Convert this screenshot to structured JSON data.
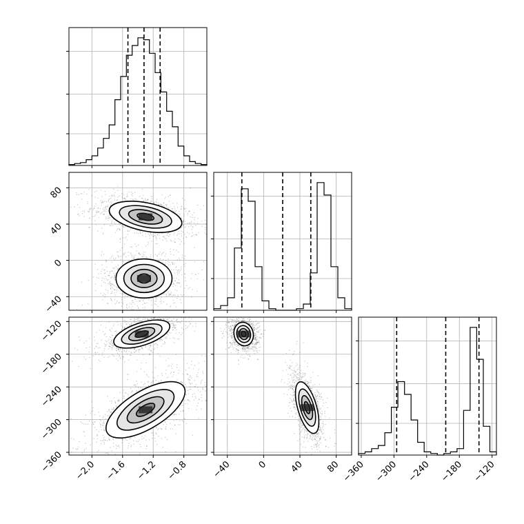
{
  "chart_data": {
    "type": "corner",
    "grid": true,
    "params": [
      {
        "range": [
          -2.3,
          -0.5
        ],
        "ticks": [
          -2.0,
          -1.6,
          -1.2,
          -0.8
        ],
        "tick_labels": [
          "−2.0",
          "−1.6",
          "−1.2",
          "−0.8"
        ],
        "quantiles": [
          -1.53,
          -1.32,
          -1.11
        ],
        "hist": [
          0.5,
          1,
          1.5,
          3,
          5,
          9,
          14,
          21,
          34,
          46,
          57,
          62,
          66,
          65,
          58,
          48,
          38,
          28,
          20,
          10,
          5,
          2,
          1,
          0.5
        ]
      },
      {
        "range": [
          -55,
          97
        ],
        "ticks": [
          -40,
          0,
          40,
          80
        ],
        "tick_labels": [
          "−40",
          "0",
          "40",
          "80"
        ],
        "quantiles": [
          -24,
          21,
          52
        ],
        "hist": [
          0.5,
          1.5,
          4,
          20,
          39,
          35,
          14,
          3,
          0.5,
          0,
          0,
          0,
          0.5,
          2,
          12,
          41,
          37,
          14,
          4,
          0.5
        ]
      },
      {
        "range": [
          -365,
          -112
        ],
        "ticks": [
          -360,
          -300,
          -240,
          -180,
          -120
        ],
        "tick_labels": [
          "−360",
          "−300",
          "−240",
          "−180",
          "−120"
        ],
        "quantiles": [
          -295,
          -205,
          -144
        ],
        "hist": [
          0.5,
          1,
          2,
          3,
          7,
          15,
          23,
          19,
          11,
          4,
          1,
          0.5,
          0,
          0.5,
          1,
          2,
          14,
          40,
          30,
          9,
          1
        ]
      }
    ],
    "pairs": [
      {
        "x": 0,
        "y": 1,
        "clusters": [
          {
            "mx": -1.3,
            "my": 48,
            "sx": 0.22,
            "sy": 8,
            "r": -0.4,
            "w": 0.5
          },
          {
            "mx": -1.32,
            "my": -20,
            "sx": 0.17,
            "sy": 10,
            "r": 0.0,
            "w": 0.5
          }
        ]
      },
      {
        "x": 0,
        "y": 2,
        "clusters": [
          {
            "mx": -1.35,
            "my": -143,
            "sx": 0.17,
            "sy": 12,
            "r": 0.55,
            "w": 0.5
          },
          {
            "mx": -1.3,
            "my": -282,
            "sx": 0.24,
            "sy": 24,
            "r": 0.65,
            "w": 0.5
          }
        ]
      },
      {
        "x": 1,
        "y": 2,
        "clusters": [
          {
            "mx": -22,
            "my": -143,
            "sx": 5,
            "sy": 10,
            "r": -0.1,
            "w": 0.5
          },
          {
            "mx": 48,
            "my": -278,
            "sx": 6,
            "sy": 22,
            "r": -0.55,
            "w": 0.5
          }
        ]
      }
    ]
  }
}
